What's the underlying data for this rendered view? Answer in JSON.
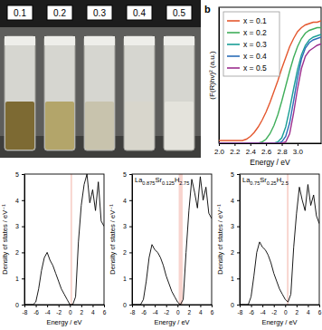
{
  "photo": {
    "labels": [
      "0.1",
      "0.2",
      "0.3",
      "0.4",
      "0.5"
    ]
  },
  "chart_data": [
    {
      "type": "line",
      "panel_label": "b",
      "xlabel": "Energy / eV",
      "ylabel": "(F(R)hν)² (a.u.)",
      "x": [
        2.0,
        2.05,
        2.1,
        2.15,
        2.2,
        2.25,
        2.3,
        2.35,
        2.4,
        2.45,
        2.5,
        2.55,
        2.6,
        2.65,
        2.7,
        2.75,
        2.8,
        2.85,
        2.9,
        2.95,
        3.0,
        3.05,
        3.1,
        3.15,
        3.2,
        3.25,
        3.3
      ],
      "xlim": [
        2.0,
        3.3
      ],
      "xticks": [
        {
          "value": 2.0,
          "label": "2.0"
        },
        {
          "value": 2.2,
          "label": "2.2"
        },
        {
          "value": 2.4,
          "label": "2.4"
        },
        {
          "value": 2.6,
          "label": "2.6"
        },
        {
          "value": 2.8,
          "label": "2.8"
        },
        {
          "value": 3.0,
          "label": "3.0"
        }
      ],
      "ylim": [
        0,
        1
      ],
      "tick_labels": "x",
      "legend": "upper left",
      "series": [
        {
          "name": "x = 0.1",
          "color": "#e4572e",
          "values": [
            0.02,
            0.02,
            0.02,
            0.02,
            0.02,
            0.02,
            0.02,
            0.03,
            0.05,
            0.08,
            0.12,
            0.17,
            0.23,
            0.3,
            0.38,
            0.46,
            0.55,
            0.63,
            0.71,
            0.77,
            0.82,
            0.85,
            0.87,
            0.88,
            0.89,
            0.89,
            0.9
          ]
        },
        {
          "name": "x = 0.2",
          "color": "#3fae5a",
          "values": [
            0,
            0,
            0,
            0,
            0,
            0,
            0,
            0,
            0,
            0,
            0,
            0.01,
            0.03,
            0.07,
            0.13,
            0.21,
            0.31,
            0.42,
            0.53,
            0.63,
            0.71,
            0.77,
            0.81,
            0.83,
            0.84,
            0.85,
            0.85
          ]
        },
        {
          "name": "x = 0.3",
          "color": "#1a9e96",
          "values": [
            0,
            0,
            0,
            0,
            0,
            0,
            0,
            0,
            0,
            0,
            0,
            0,
            0,
            0,
            0,
            0.01,
            0.04,
            0.12,
            0.25,
            0.4,
            0.54,
            0.65,
            0.72,
            0.76,
            0.78,
            0.79,
            0.8
          ]
        },
        {
          "name": "x = 0.4",
          "color": "#2b6cb8",
          "values": [
            0,
            0,
            0,
            0,
            0,
            0,
            0,
            0,
            0,
            0,
            0,
            0,
            0,
            0,
            0,
            0,
            0.01,
            0.05,
            0.15,
            0.31,
            0.48,
            0.62,
            0.7,
            0.74,
            0.76,
            0.77,
            0.78
          ]
        },
        {
          "name": "x = 0.5",
          "color": "#9c2f8e",
          "values": [
            0,
            0,
            0,
            0,
            0,
            0,
            0,
            0,
            0,
            0,
            0,
            0,
            0,
            0,
            0,
            0,
            0,
            0.01,
            0.07,
            0.22,
            0.4,
            0.55,
            0.64,
            0.68,
            0.7,
            0.72,
            0.73
          ]
        }
      ]
    },
    {
      "type": "line",
      "xlabel": "Energy / eV",
      "ylabel": "Density of states / eV⁻¹",
      "color": "#000000",
      "x": [
        -8,
        -7.5,
        -7,
        -6.5,
        -6,
        -5.5,
        -5,
        -4.5,
        -4,
        -3.5,
        -3,
        -2.5,
        -2,
        -1.5,
        -1,
        -0.5,
        0,
        0.5,
        1,
        1.5,
        2,
        2.5,
        3,
        3.5,
        4,
        4.5,
        5,
        5.5,
        6
      ],
      "values": [
        0,
        0,
        0,
        0,
        0.1,
        0.6,
        1.3,
        1.8,
        2.0,
        1.7,
        1.5,
        1.2,
        0.9,
        0.6,
        0.4,
        0.2,
        0,
        0,
        0.3,
        2.4,
        3.8,
        4.6,
        5.0,
        3.9,
        4.4,
        3.6,
        4.7,
        3.2,
        3.0
      ],
      "highlight": [
        0.1,
        0.4
      ],
      "xlim": [
        -8,
        6
      ],
      "xticks": [
        -8,
        -6,
        -4,
        -2,
        0,
        2,
        4,
        6
      ],
      "ylim": [
        0,
        5
      ],
      "yticks": [
        0,
        1,
        2,
        3,
        4,
        5
      ]
    },
    {
      "type": "line",
      "title": "La0.875Sr0.125H2.75",
      "xlabel": "Energy / eV",
      "ylabel": "Density of states / eV⁻¹",
      "color": "#000000",
      "x": [
        -8,
        -7.5,
        -7,
        -6.5,
        -6,
        -5.5,
        -5,
        -4.5,
        -4,
        -3.5,
        -3,
        -2.5,
        -2,
        -1.5,
        -1,
        -0.5,
        0,
        0.5,
        1,
        1.5,
        2,
        2.5,
        3,
        3.5,
        4,
        4.5,
        5,
        5.5,
        6
      ],
      "values": [
        0,
        0,
        0,
        0,
        0.2,
        0.9,
        1.8,
        2.3,
        2.1,
        2.0,
        1.8,
        1.5,
        1.1,
        0.8,
        0.5,
        0.3,
        0.1,
        0,
        0.2,
        2.0,
        3.6,
        4.8,
        4.3,
        3.7,
        4.9,
        4.0,
        4.5,
        3.5,
        3.3
      ],
      "highlight": [
        0.2,
        0.9
      ],
      "xlim": [
        -8,
        6
      ],
      "xticks": [
        -8,
        -6,
        -4,
        -2,
        0,
        2,
        4,
        6
      ],
      "ylim": [
        0,
        5
      ],
      "yticks": [
        0,
        1,
        2,
        3,
        4,
        5
      ]
    },
    {
      "type": "line",
      "title": "La0.75Sr0.25H2.5",
      "xlabel": "Energy / eV",
      "ylabel": "Density of states / eV⁻¹",
      "color": "#000000",
      "x": [
        -8,
        -7.5,
        -7,
        -6.5,
        -6,
        -5.5,
        -5,
        -4.5,
        -4,
        -3.5,
        -3,
        -2.5,
        -2,
        -1.5,
        -1,
        -0.5,
        0,
        0.5,
        1,
        1.5,
        2,
        2.5,
        3,
        3.5,
        4,
        4.5,
        5,
        5.5,
        6
      ],
      "values": [
        0,
        0,
        0,
        0,
        0.3,
        1.1,
        2.0,
        2.4,
        2.2,
        2.1,
        1.9,
        1.6,
        1.2,
        0.9,
        0.6,
        0.4,
        0.2,
        0.1,
        0.4,
        2.2,
        3.5,
        4.5,
        4.0,
        3.6,
        4.6,
        3.8,
        4.2,
        3.4,
        3.1
      ],
      "highlight": [
        0.3,
        0.6
      ],
      "xlim": [
        -8,
        6
      ],
      "xticks": [
        -8,
        -6,
        -4,
        -2,
        0,
        2,
        4,
        6
      ],
      "ylim": [
        0,
        5
      ],
      "yticks": [
        0,
        1,
        2,
        3,
        4,
        5
      ]
    }
  ]
}
